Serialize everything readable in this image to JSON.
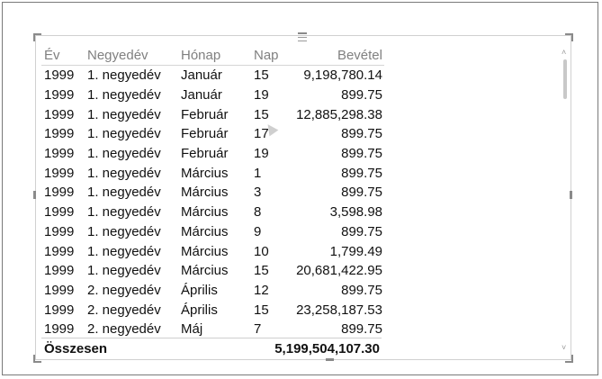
{
  "table": {
    "headers": [
      "Év",
      "Negyedév",
      "Hónap",
      "Nap",
      "Bevétel"
    ],
    "rows": [
      [
        "1999",
        "1. negyedév",
        "Január",
        "15",
        "9,198,780.14"
      ],
      [
        "1999",
        "1. negyedév",
        "Január",
        "19",
        "899.75"
      ],
      [
        "1999",
        "1. negyedév",
        "Február",
        "15",
        "12,885,298.38"
      ],
      [
        "1999",
        "1. negyedév",
        "Február",
        "17",
        "899.75"
      ],
      [
        "1999",
        "1. negyedév",
        "Február",
        "19",
        "899.75"
      ],
      [
        "1999",
        "1. negyedév",
        "Március",
        "1",
        "899.75"
      ],
      [
        "1999",
        "1. negyedév",
        "Március",
        "3",
        "899.75"
      ],
      [
        "1999",
        "1. negyedév",
        "Március",
        "8",
        "3,598.98"
      ],
      [
        "1999",
        "1. negyedév",
        "Március",
        "9",
        "899.75"
      ],
      [
        "1999",
        "1. negyedév",
        "Március",
        "10",
        "1,799.49"
      ],
      [
        "1999",
        "1. negyedév",
        "Március",
        "15",
        "20,681,422.95"
      ],
      [
        "1999",
        "2. negyedév",
        "Április",
        "12",
        "899.75"
      ],
      [
        "1999",
        "2. negyedév",
        "Április",
        "15",
        "23,258,187.53"
      ],
      [
        "1999",
        "2. negyedév",
        "Máj",
        "7",
        "899.75"
      ]
    ],
    "total_label": "Összesen",
    "total_value": "5,199,504,107.30"
  },
  "icons": {
    "grip": "drag-grip-icon",
    "more": "more-options-icon",
    "scroll_up": "chevron-up-icon",
    "scroll_down": "chevron-down-icon",
    "cursor": "mouse-cursor-icon"
  },
  "colors": {
    "header_text": "#808080",
    "border": "#d0d0d0",
    "frame": "#7a7a7a"
  }
}
